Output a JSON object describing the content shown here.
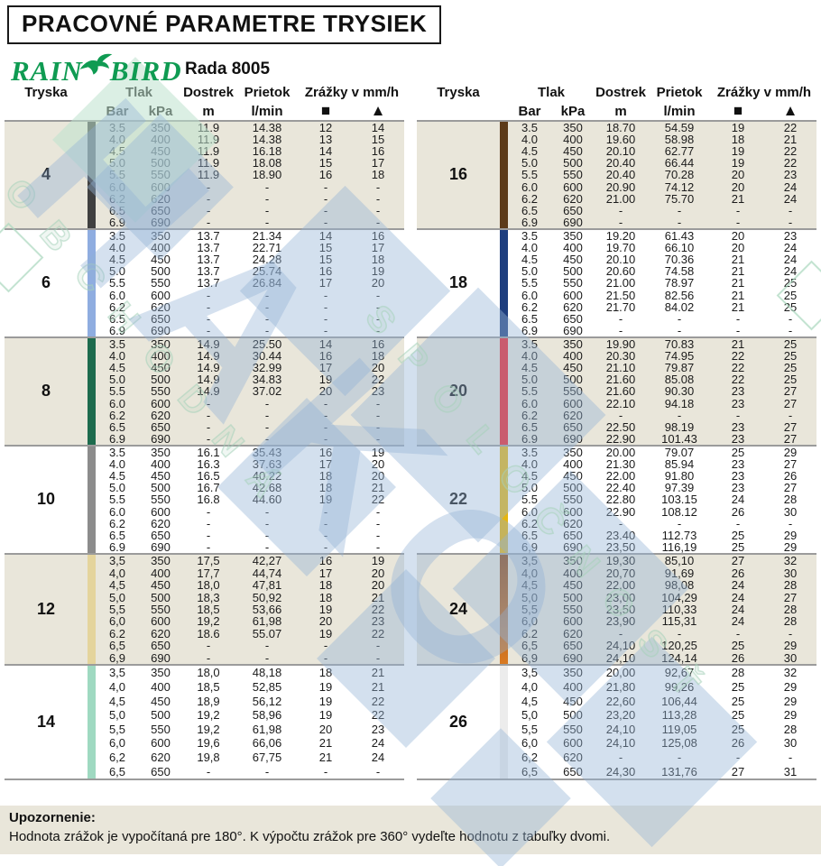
{
  "title": "PRACOVNÉ PARAMETRE TRYSIEK",
  "brand": {
    "name_left": "RAIN",
    "name_right": "BIRD",
    "series": "Rada 8005"
  },
  "header": {
    "tryska": "Tryska",
    "tlak": "Tlak",
    "bar": "Bar",
    "kpa": "kPa",
    "dostrek": "Dostrek",
    "m": "m",
    "prietok": "Prietok",
    "lmin": "l/min",
    "zrazky": "Zrážky v mm/h",
    "square": "■",
    "triangle": "▲"
  },
  "note": {
    "label": "Upozornenie:",
    "text": "Hodnota zrážok je vypočítaná pre 180°. K výpočtu zrážok pre 360°  vydeľte hodnotu z tabuľky dvomi."
  },
  "colors": {
    "rainbird_green": "#0f9b52",
    "beige_band": "#e9e6da",
    "separator": "#9b9b9b",
    "watermark_blue": "#96b4d7",
    "watermark_green": "#aad4bc"
  },
  "tables": [
    {
      "sections": [
        {
          "nozzle": "4",
          "bar_color": "#3f3f3f",
          "band": "beige",
          "rows": [
            [
              "3.5",
              "350",
              "11.9",
              "14.38",
              "12",
              "14"
            ],
            [
              "4.0",
              "400",
              "11.9",
              "14.38",
              "13",
              "15"
            ],
            [
              "4.5",
              "450",
              "11.9",
              "16.18",
              "14",
              "16"
            ],
            [
              "5.0",
              "500",
              "11.9",
              "18.08",
              "15",
              "17"
            ],
            [
              "5.5",
              "550",
              "11.9",
              "18.90",
              "16",
              "18"
            ],
            [
              "6.0",
              "600",
              "-",
              "-",
              "-",
              "-"
            ],
            [
              "6.2",
              "620",
              "-",
              "-",
              "-",
              "-"
            ],
            [
              "6.5",
              "650",
              "-",
              "-",
              "-",
              "-"
            ],
            [
              "6.9",
              "690",
              "-",
              "-",
              "-",
              "-"
            ]
          ]
        },
        {
          "nozzle": "6",
          "bar_color": "#8fade0",
          "band": "white",
          "rows": [
            [
              "3.5",
              "350",
              "13.7",
              "21.34",
              "14",
              "16"
            ],
            [
              "4.0",
              "400",
              "13.7",
              "22.71",
              "15",
              "17"
            ],
            [
              "4.5",
              "450",
              "13.7",
              "24.28",
              "15",
              "18"
            ],
            [
              "5.0",
              "500",
              "13.7",
              "25.74",
              "16",
              "19"
            ],
            [
              "5.5",
              "550",
              "13.7",
              "26.84",
              "17",
              "20"
            ],
            [
              "6.0",
              "600",
              "-",
              "-",
              "-",
              "-"
            ],
            [
              "6.2",
              "620",
              "-",
              "-",
              "-",
              "-"
            ],
            [
              "6.5",
              "650",
              "-",
              "-",
              "-",
              "-"
            ],
            [
              "6.9",
              "690",
              "-",
              "-",
              "-",
              "-"
            ]
          ]
        },
        {
          "nozzle": "8",
          "bar_color": "#1d6b4d",
          "band": "beige",
          "rows": [
            [
              "3.5",
              "350",
              "14.9",
              "25.50",
              "14",
              "16"
            ],
            [
              "4.0",
              "400",
              "14.9",
              "30.44",
              "16",
              "18"
            ],
            [
              "4.5",
              "450",
              "14.9",
              "32.99",
              "17",
              "20"
            ],
            [
              "5.0",
              "500",
              "14.9",
              "34.83",
              "19",
              "22"
            ],
            [
              "5.5",
              "550",
              "14.9",
              "37.02",
              "20",
              "23"
            ],
            [
              "6.0",
              "600",
              "-",
              "-",
              "-",
              "-"
            ],
            [
              "6.2",
              "620",
              "-",
              "-",
              "-",
              "-"
            ],
            [
              "6.5",
              "650",
              "-",
              "-",
              "-",
              "-"
            ],
            [
              "6.9",
              "690",
              "-",
              "-",
              "-",
              "-"
            ]
          ]
        },
        {
          "nozzle": "10",
          "bar_color": "#8c8c8c",
          "band": "white",
          "rows": [
            [
              "3.5",
              "350",
              "16.1",
              "35.43",
              "16",
              "19"
            ],
            [
              "4.0",
              "400",
              "16.3",
              "37.63",
              "17",
              "20"
            ],
            [
              "4.5",
              "450",
              "16.5",
              "40.22",
              "18",
              "20"
            ],
            [
              "5.0",
              "500",
              "16.7",
              "42.68",
              "18",
              "21"
            ],
            [
              "5.5",
              "550",
              "16.8",
              "44.60",
              "19",
              "22"
            ],
            [
              "6.0",
              "600",
              "-",
              "-",
              "-",
              "-"
            ],
            [
              "6.2",
              "620",
              "-",
              "-",
              "-",
              "-"
            ],
            [
              "6.5",
              "650",
              "-",
              "-",
              "-",
              "-"
            ],
            [
              "6.9",
              "690",
              "-",
              "-",
              "-",
              "-"
            ]
          ]
        },
        {
          "nozzle": "12",
          "bar_color": "#e4d49c",
          "band": "beige",
          "rows": [
            [
              "3,5",
              "350",
              "17,5",
              "42,27",
              "16",
              "19"
            ],
            [
              "4,0",
              "400",
              "17,7",
              "44,74",
              "17",
              "20"
            ],
            [
              "4,5",
              "450",
              "18,0",
              "47,81",
              "18",
              "20"
            ],
            [
              "5,0",
              "500",
              "18,3",
              "50,92",
              "18",
              "21"
            ],
            [
              "5,5",
              "550",
              "18,5",
              "53,66",
              "19",
              "22"
            ],
            [
              "6,0",
              "600",
              "19,2",
              "61,98",
              "20",
              "23"
            ],
            [
              "6.2",
              "620",
              "18.6",
              "55.07",
              "19",
              "22"
            ],
            [
              "6,5",
              "650",
              "-",
              "-",
              "-",
              "-"
            ],
            [
              "6,9",
              "690",
              "-",
              "-",
              "-",
              "-"
            ]
          ]
        },
        {
          "nozzle": "14",
          "bar_color": "#9fd9c1",
          "band": "white",
          "rows": [
            [
              "3,5",
              "350",
              "18,0",
              "48,18",
              "18",
              "21"
            ],
            [
              "4,0",
              "400",
              "18,5",
              "52,85",
              "19",
              "21"
            ],
            [
              "4,5",
              "450",
              "18,9",
              "56,12",
              "19",
              "22"
            ],
            [
              "5,0",
              "500",
              "19,2",
              "58,96",
              "19",
              "22"
            ],
            [
              "5,5",
              "550",
              "19,2",
              "61,98",
              "20",
              "23"
            ],
            [
              "6,0",
              "600",
              "19,6",
              "66,06",
              "21",
              "24"
            ],
            [
              "6,2",
              "620",
              "19,8",
              "67,75",
              "21",
              "24"
            ],
            [
              "6,5",
              "650",
              "-",
              "-",
              "-",
              "-"
            ]
          ]
        }
      ]
    },
    {
      "sections": [
        {
          "nozzle": "16",
          "bar_color": "#5c3a18",
          "band": "beige",
          "rows": [
            [
              "3.5",
              "350",
              "18.70",
              "54.59",
              "19",
              "22"
            ],
            [
              "4.0",
              "400",
              "19.60",
              "58.98",
              "18",
              "21"
            ],
            [
              "4.5",
              "450",
              "20.10",
              "62.77",
              "19",
              "22"
            ],
            [
              "5.0",
              "500",
              "20.40",
              "66.44",
              "19",
              "22"
            ],
            [
              "5.5",
              "550",
              "20.40",
              "70.28",
              "20",
              "23"
            ],
            [
              "6.0",
              "600",
              "20.90",
              "74.12",
              "20",
              "24"
            ],
            [
              "6.2",
              "620",
              "21.00",
              "75.70",
              "21",
              "24"
            ],
            [
              "6.5",
              "650",
              "-",
              "-",
              "-",
              "-"
            ],
            [
              "6.9",
              "690",
              "-",
              "-",
              "-",
              "-"
            ]
          ]
        },
        {
          "nozzle": "18",
          "bar_color": "#1e3e7e",
          "band": "white",
          "rows": [
            [
              "3.5",
              "350",
              "19.20",
              "61.43",
              "20",
              "23"
            ],
            [
              "4.0",
              "400",
              "19.70",
              "66.10",
              "20",
              "24"
            ],
            [
              "4.5",
              "450",
              "20.10",
              "70.36",
              "21",
              "24"
            ],
            [
              "5.0",
              "500",
              "20.60",
              "74.58",
              "21",
              "24"
            ],
            [
              "5.5",
              "550",
              "21.00",
              "78.97",
              "21",
              "25"
            ],
            [
              "6.0",
              "600",
              "21.50",
              "82.56",
              "21",
              "25"
            ],
            [
              "6.2",
              "620",
              "21.70",
              "84.02",
              "21",
              "25"
            ],
            [
              "6.5",
              "650",
              "-",
              "-",
              "-",
              "-"
            ],
            [
              "6.9",
              "690",
              "-",
              "-",
              "-",
              "-"
            ]
          ]
        },
        {
          "nozzle": "20",
          "bar_color": "#ee1c23",
          "band": "beige",
          "rows": [
            [
              "3.5",
              "350",
              "19.90",
              "70.83",
              "21",
              "25"
            ],
            [
              "4.0",
              "400",
              "20.30",
              "74.95",
              "22",
              "25"
            ],
            [
              "4.5",
              "450",
              "21.10",
              "79.87",
              "22",
              "25"
            ],
            [
              "5.0",
              "500",
              "21.60",
              "85.08",
              "22",
              "25"
            ],
            [
              "5.5",
              "550",
              "21.60",
              "90.30",
              "23",
              "27"
            ],
            [
              "6.0",
              "600",
              "22.10",
              "94.18",
              "23",
              "27"
            ],
            [
              "6.2",
              "620",
              "-",
              "-",
              "-",
              "-"
            ],
            [
              "6.5",
              "650",
              "22.50",
              "98.19",
              "23",
              "27"
            ],
            [
              "6.9",
              "690",
              "22.90",
              "101.43",
              "23",
              "27"
            ]
          ]
        },
        {
          "nozzle": "22",
          "bar_color": "#e5b511",
          "band": "white",
          "rows": [
            [
              "3.5",
              "350",
              "20.00",
              "79.07",
              "25",
              "29"
            ],
            [
              "4.0",
              "400",
              "21.30",
              "85.94",
              "23",
              "27"
            ],
            [
              "4.5",
              "450",
              "22.00",
              "91.80",
              "23",
              "26"
            ],
            [
              "5.0",
              "500",
              "22.40",
              "97.39",
              "23",
              "27"
            ],
            [
              "5.5",
              "550",
              "22.80",
              "103.15",
              "24",
              "28"
            ],
            [
              "6.0",
              "600",
              "22.90",
              "108.12",
              "26",
              "30"
            ],
            [
              "6.2",
              "620",
              "-",
              "-",
              "-",
              "-"
            ],
            [
              "6.5",
              "650",
              "23.40",
              "112.73",
              "25",
              "29"
            ],
            [
              "6,9",
              "690",
              "23,50",
              "116,19",
              "25",
              "29"
            ]
          ]
        },
        {
          "nozzle": "24",
          "bar_color": "#c05f1d",
          "band": "beige",
          "rows": [
            [
              "3,5",
              "350",
              "19,30",
              "85,10",
              "27",
              "32"
            ],
            [
              "4,0",
              "400",
              "20,70",
              "91,69",
              "26",
              "30"
            ],
            [
              "4,5",
              "450",
              "22,00",
              "98,08",
              "24",
              "28"
            ],
            [
              "5,0",
              "500",
              "23,00",
              "104,29",
              "24",
              "27"
            ],
            [
              "5,5",
              "550",
              "23,50",
              "110,33",
              "24",
              "28"
            ],
            [
              "6,0",
              "600",
              "23,90",
              "115,31",
              "24",
              "28"
            ],
            [
              "6.2",
              "620",
              "-",
              "-",
              "-",
              "-"
            ],
            [
              "6,5",
              "650",
              "24,10",
              "120,25",
              "25",
              "29"
            ],
            [
              "6,9",
              "690",
              "24,10",
              "124,14",
              "26",
              "30"
            ]
          ]
        },
        {
          "nozzle": "26",
          "bar_color": "#ececec",
          "band": "white",
          "rows": [
            [
              "3,5",
              "350",
              "20,00",
              "92,67",
              "28",
              "32"
            ],
            [
              "4,0",
              "400",
              "21,80",
              "99,26",
              "25",
              "29"
            ],
            [
              "4,5",
              "450",
              "22,60",
              "106,44",
              "25",
              "29"
            ],
            [
              "5,0",
              "500",
              "23,20",
              "113,28",
              "25",
              "29"
            ],
            [
              "5,5",
              "550",
              "24,10",
              "119,05",
              "25",
              "28"
            ],
            [
              "6,0",
              "600",
              "24,10",
              "125,08",
              "26",
              "30"
            ],
            [
              "6,2",
              "620",
              "-",
              "-",
              "-",
              "-"
            ],
            [
              "6,5",
              "650",
              "24,30",
              "131,76",
              "27",
              "31"
            ]
          ]
        }
      ]
    }
  ],
  "watermark": {
    "text_big": "HAKO",
    "text_green_1": "OBCHODNÁ",
    "text_green_2": "SPOLOČNOSŤ"
  }
}
